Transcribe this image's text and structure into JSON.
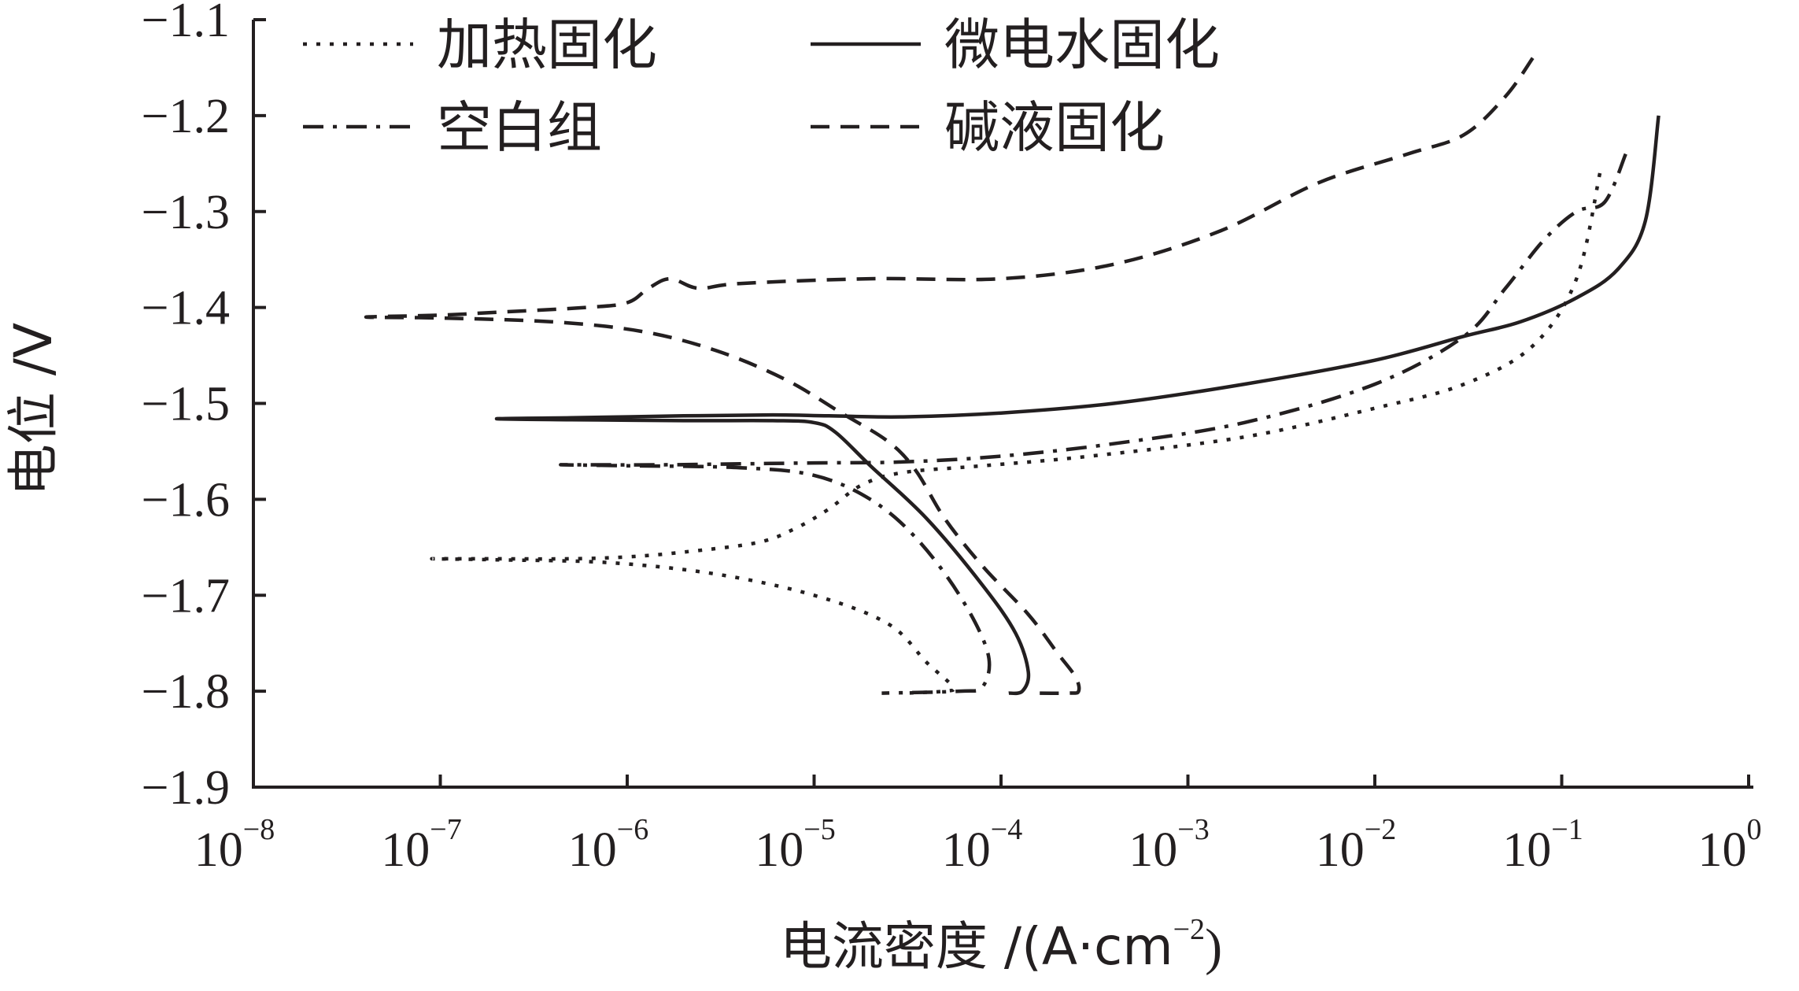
{
  "chart_data": {
    "type": "line",
    "xscale": "log",
    "ylabel": "电位 /V",
    "xlabel": {
      "main": "电流密度 /(A·cm",
      "superscript": "−2",
      "close": ")"
    },
    "xlim": [
      1e-08,
      1
    ],
    "ylim": [
      -1.9,
      -1.1
    ],
    "yticks": [
      -1.1,
      -1.2,
      -1.3,
      -1.4,
      -1.5,
      -1.6,
      -1.7,
      -1.8,
      -1.9
    ],
    "ytick_labels": [
      "−1.1",
      "−1.2",
      "−1.3",
      "−1.4",
      "−1.5",
      "−1.6",
      "−1.7",
      "−1.8",
      "−1.9"
    ],
    "xticks": [
      1e-08,
      1e-07,
      1e-06,
      1e-05,
      0.0001,
      0.001,
      0.01,
      0.1,
      1
    ],
    "xtick_labels": [
      {
        "base": "10",
        "exp": "−8"
      },
      {
        "base": "10",
        "exp": "−7"
      },
      {
        "base": "10",
        "exp": "−6"
      },
      {
        "base": "10",
        "exp": "−5"
      },
      {
        "base": "10",
        "exp": "−4"
      },
      {
        "base": "10",
        "exp": "−3"
      },
      {
        "base": "10",
        "exp": "−2"
      },
      {
        "base": "10",
        "exp": "−1"
      },
      {
        "base": "10",
        "exp": "0"
      }
    ],
    "grid": false,
    "legend_position": "top-left",
    "series": [
      {
        "name": "加热固化",
        "style": "dotted",
        "x": [
          0.16,
          0.12,
          0.07,
          0.03,
          0.01,
          0.002,
          0.0003,
          8e-05,
          3e-05,
          1.8e-05,
          1.2e-05,
          8e-06,
          5e-06,
          2e-06,
          1e-06,
          5e-07,
          2e-07,
          9e-08,
          2e-07,
          8e-07,
          3e-06,
          1e-05,
          2.5e-05,
          4e-05,
          5.5e-05,
          5e-05,
          3e-05
        ],
        "y": [
          -1.26,
          -1.37,
          -1.44,
          -1.48,
          -1.505,
          -1.535,
          -1.555,
          -1.565,
          -1.572,
          -1.585,
          -1.61,
          -1.63,
          -1.645,
          -1.655,
          -1.66,
          -1.662,
          -1.662,
          -1.662,
          -1.663,
          -1.666,
          -1.678,
          -1.7,
          -1.73,
          -1.77,
          -1.795,
          -1.8,
          -1.802
        ]
      },
      {
        "name": "微电水固化",
        "style": "solid",
        "x": [
          0.33,
          0.28,
          0.2,
          0.12,
          0.06,
          0.03,
          0.01,
          0.002,
          0.0004,
          0.0001,
          3e-05,
          1.2e-05,
          6e-06,
          2e-06,
          5e-07,
          2e-07,
          5e-07,
          2e-06,
          6e-06,
          1e-05,
          1.3e-05,
          2e-05,
          4e-05,
          8e-05,
          0.00012,
          0.00014,
          0.00013,
          0.00011
        ],
        "y": [
          -1.2,
          -1.31,
          -1.36,
          -1.39,
          -1.415,
          -1.43,
          -1.455,
          -1.48,
          -1.5,
          -1.51,
          -1.514,
          -1.513,
          -1.512,
          -1.513,
          -1.515,
          -1.516,
          -1.517,
          -1.518,
          -1.518,
          -1.52,
          -1.53,
          -1.565,
          -1.62,
          -1.69,
          -1.74,
          -1.78,
          -1.8,
          -1.802
        ]
      },
      {
        "name": "空白组",
        "style": "dashdot",
        "x": [
          0.22,
          0.17,
          0.12,
          0.08,
          0.05,
          0.03,
          0.01,
          0.002,
          0.0004,
          0.0001,
          3e-05,
          1e-05,
          4e-06,
          1.5e-06,
          6e-07,
          4.5e-07,
          1e-06,
          4e-06,
          1e-05,
          2e-05,
          3.5e-05,
          6e-05,
          8.5e-05,
          8e-05,
          6e-05,
          2.3e-05
        ],
        "y": [
          -1.24,
          -1.29,
          -1.3,
          -1.33,
          -1.38,
          -1.43,
          -1.48,
          -1.52,
          -1.542,
          -1.555,
          -1.561,
          -1.562,
          -1.563,
          -1.564,
          -1.564,
          -1.564,
          -1.565,
          -1.567,
          -1.575,
          -1.6,
          -1.64,
          -1.7,
          -1.76,
          -1.795,
          -1.8,
          -1.802
        ]
      },
      {
        "name": "碱液固化",
        "style": "dashed",
        "x": [
          0.07,
          0.05,
          0.03,
          0.015,
          0.005,
          0.0015,
          0.0004,
          0.0001,
          2e-05,
          4e-06,
          2.4e-06,
          1.7e-06,
          1.3e-06,
          1e-06,
          6e-07,
          2e-07,
          1e-07,
          4e-08,
          1e-07,
          4e-07,
          1.2e-06,
          3e-06,
          7e-06,
          1.4e-05,
          2.5e-05,
          3.5e-05,
          5e-05,
          8e-05,
          0.00014,
          0.0002,
          0.00025,
          0.00026,
          0.00023,
          0.00015
        ],
        "y": [
          -1.14,
          -1.18,
          -1.22,
          -1.24,
          -1.27,
          -1.32,
          -1.355,
          -1.37,
          -1.37,
          -1.375,
          -1.38,
          -1.37,
          -1.38,
          -1.395,
          -1.4,
          -1.405,
          -1.408,
          -1.41,
          -1.411,
          -1.415,
          -1.425,
          -1.445,
          -1.475,
          -1.51,
          -1.54,
          -1.57,
          -1.62,
          -1.67,
          -1.72,
          -1.76,
          -1.785,
          -1.8,
          -1.802,
          -1.802
        ]
      }
    ]
  }
}
